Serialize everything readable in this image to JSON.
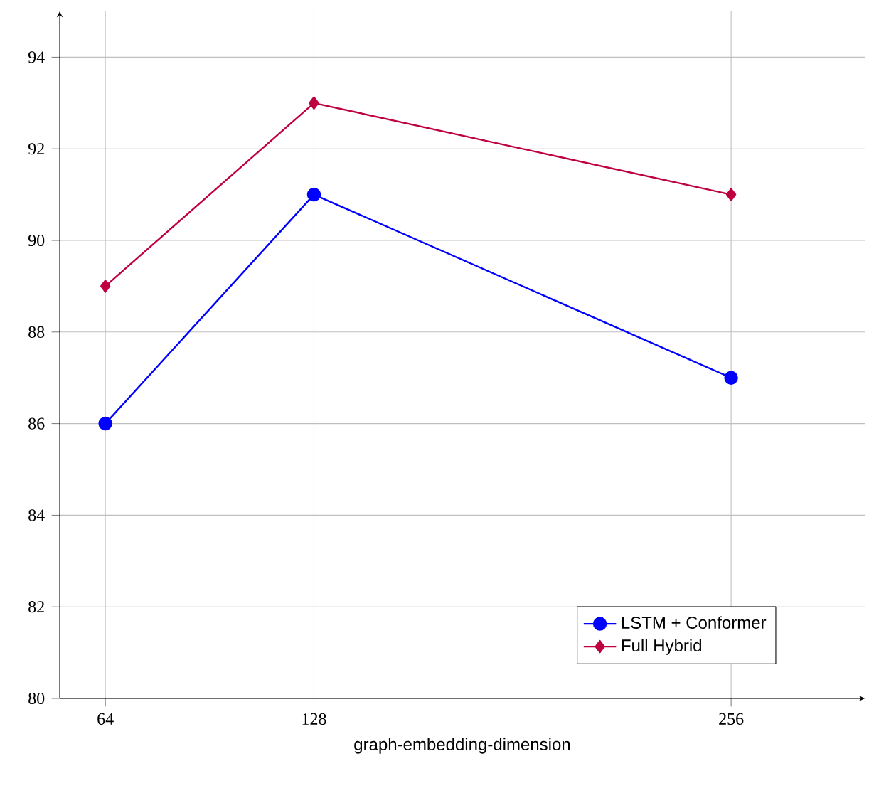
{
  "chart_data": {
    "type": "line",
    "xlabel": "graph-embedding-dimension",
    "x": [
      64,
      128,
      256
    ],
    "series": [
      {
        "name": "LSTM + Conformer",
        "color": "#0000ff",
        "marker": "circle",
        "values": [
          86,
          91,
          87
        ]
      },
      {
        "name": "Full Hybrid",
        "color": "#bf0040",
        "marker": "diamond",
        "values": [
          89,
          93,
          91
        ]
      }
    ],
    "xlim": [
      50,
      297
    ],
    "ylim": [
      80,
      95
    ],
    "xticks": [
      64,
      128,
      256
    ],
    "yticks": [
      80,
      82,
      84,
      86,
      88,
      90,
      92,
      94
    ],
    "grid": true,
    "legend": "bottom right",
    "line_style": "solid"
  }
}
